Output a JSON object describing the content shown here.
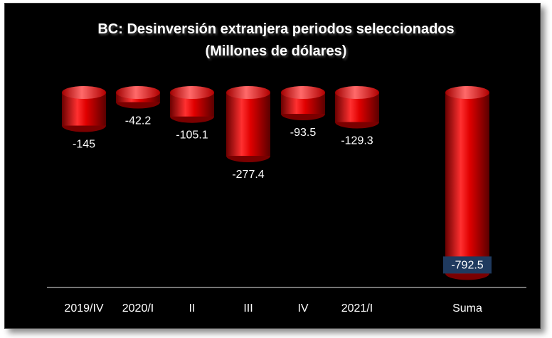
{
  "chart_data": {
    "type": "bar",
    "title": "BC: Desinversión extranjera periodos seleccionados",
    "subtitle": "(Millones de dólares)",
    "xlabel": "",
    "ylabel": "",
    "categories": [
      "2019/IV",
      "2020/I",
      "II",
      "III",
      "IV",
      "2021/I",
      "Suma"
    ],
    "values": [
      -145,
      -42.2,
      -105.1,
      -277.4,
      -93.5,
      -129.3,
      -792.5
    ],
    "data_labels": [
      "-145",
      "-42.2",
      "-105.1",
      "-277.4",
      "-93.5",
      "-129.3",
      "-792.5"
    ],
    "ylim": [
      -810,
      0
    ],
    "grid": false,
    "legend": "none",
    "bar_style": "3d-cylinder",
    "colors": {
      "bar": "#e00000",
      "bar_dark": "#5a0000",
      "bar_top": "#ff5a5a",
      "background": "#000000",
      "text": "#ffffff",
      "highlight_label_bg": "#1f3a5f"
    }
  }
}
